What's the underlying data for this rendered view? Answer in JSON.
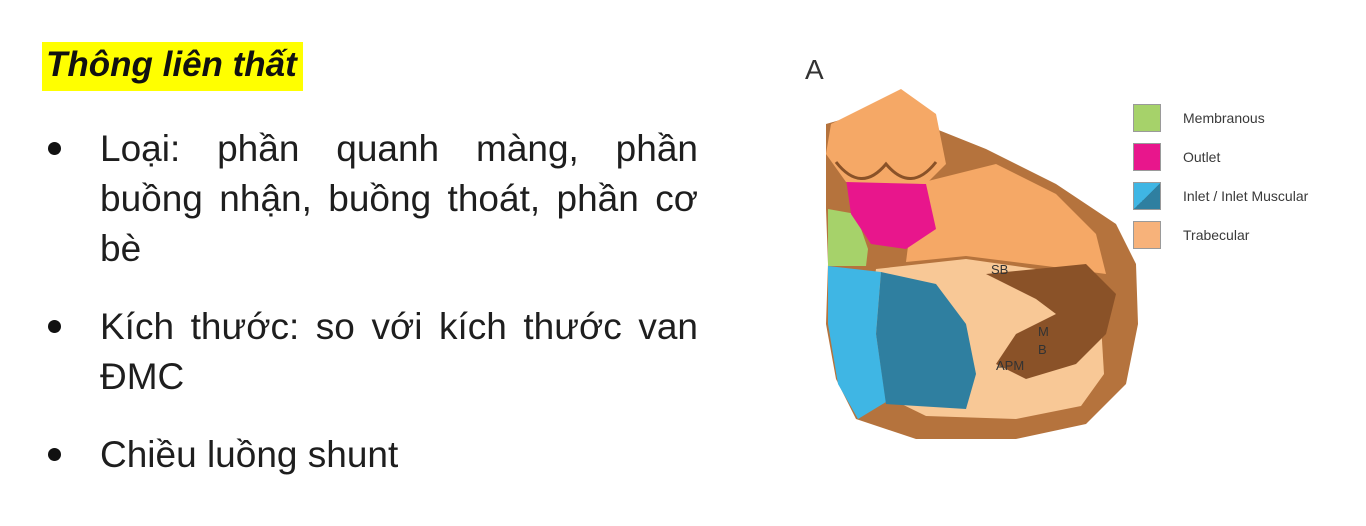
{
  "title": "Thông liên thất",
  "bullets": [
    "Loại: phần quanh màng, phần buồng nhận, buồng thoát, phần cơ bè",
    "Kích thước: so với kích thước van ĐMC",
    "Chiều luồng shunt"
  ],
  "figure": {
    "panel_letter": "A",
    "labels": {
      "sb": "SB",
      "mb_m": "M",
      "mb_b": "B",
      "apm": "APM"
    },
    "legend": [
      {
        "label": "Membranous",
        "color": "#a6d26a"
      },
      {
        "label": "Outlet",
        "color": "#e8168c"
      },
      {
        "label": "Inlet / Inlet Muscular",
        "color": "#3fb6e4",
        "color2": "#2f7fa0"
      },
      {
        "label": "Trabecular",
        "color": "#f7b27a"
      }
    ],
    "colors": {
      "wall": "#b5733d",
      "wall_dark": "#8a5228",
      "trabecular": "#f5a866",
      "trabecular_light": "#f8c896"
    }
  }
}
